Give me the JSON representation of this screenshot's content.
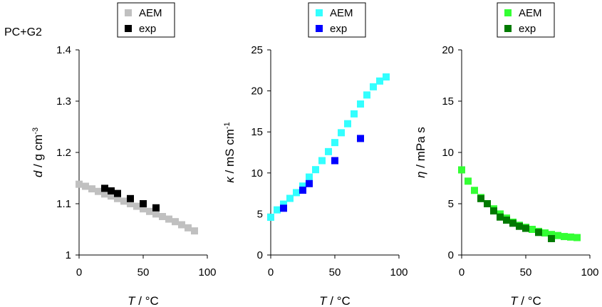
{
  "annotation": "PC+G2",
  "chart_data": [
    {
      "type": "scatter",
      "ylabel_symbol": "d",
      "ylabel_unit": " / g cm",
      "ylabel_sup": "-3",
      "xlabel_symbol": "T",
      "xlabel_unit": " / °C",
      "xlim": [
        0,
        100
      ],
      "ylim": [
        1,
        1.4
      ],
      "xticks": [
        0,
        50,
        100
      ],
      "yticks": [
        1,
        1.1,
        1.2,
        1.3,
        1.4
      ],
      "ytick_labels": [
        "1",
        "1.1",
        "1.2",
        "1.3",
        "1.4"
      ],
      "legend_position": "top",
      "series": [
        {
          "name": "AEM",
          "color": "#c0c0c0",
          "x": [
            0,
            5,
            10,
            15,
            20,
            25,
            30,
            35,
            40,
            45,
            50,
            55,
            60,
            65,
            70,
            75,
            80,
            85,
            90
          ],
          "y": [
            1.138,
            1.134,
            1.129,
            1.124,
            1.119,
            1.115,
            1.11,
            1.105,
            1.1,
            1.095,
            1.09,
            1.085,
            1.08,
            1.075,
            1.07,
            1.065,
            1.059,
            1.053,
            1.047
          ]
        },
        {
          "name": "exp",
          "color": "#000000",
          "x": [
            20,
            25,
            30,
            40,
            50,
            60
          ],
          "y": [
            1.13,
            1.125,
            1.12,
            1.11,
            1.1,
            1.092
          ]
        }
      ]
    },
    {
      "type": "scatter",
      "ylabel_symbol": "κ",
      "ylabel_unit": " / mS cm",
      "ylabel_sup": "-1",
      "xlabel_symbol": "T",
      "xlabel_unit": " / °C",
      "xlim": [
        0,
        100
      ],
      "ylim": [
        0,
        25
      ],
      "xticks": [
        0,
        50,
        100
      ],
      "yticks": [
        0,
        5,
        10,
        15,
        20,
        25
      ],
      "ytick_labels": [
        "0",
        "5",
        "10",
        "15",
        "20",
        "25"
      ],
      "legend_position": "top",
      "series": [
        {
          "name": "AEM",
          "color": "#33ffff",
          "x": [
            0,
            5,
            10,
            15,
            20,
            25,
            30,
            35,
            40,
            45,
            50,
            55,
            60,
            65,
            70,
            75,
            80,
            85,
            90
          ],
          "y": [
            4.6,
            5.5,
            6.2,
            6.9,
            7.6,
            8.4,
            9.5,
            10.4,
            11.5,
            12.6,
            13.7,
            14.9,
            16.0,
            17.2,
            18.4,
            19.5,
            20.5,
            21.2,
            21.7
          ]
        },
        {
          "name": "exp",
          "color": "#0000ff",
          "x": [
            10,
            25,
            30,
            50,
            70
          ],
          "y": [
            5.7,
            7.9,
            8.7,
            11.5,
            14.2
          ]
        }
      ]
    },
    {
      "type": "scatter",
      "ylabel_symbol": "η",
      "ylabel_unit": " / mPa s",
      "ylabel_sup": "",
      "xlabel_symbol": "T",
      "xlabel_unit": " / °C",
      "xlim": [
        0,
        100
      ],
      "ylim": [
        0,
        20
      ],
      "xticks": [
        0,
        50,
        100
      ],
      "yticks": [
        0,
        5,
        10,
        15,
        20
      ],
      "ytick_labels": [
        "0",
        "5",
        "10",
        "15",
        "20"
      ],
      "legend_position": "top",
      "series": [
        {
          "name": "AEM",
          "color": "#33ff33",
          "x": [
            0,
            5,
            10,
            15,
            20,
            25,
            30,
            35,
            40,
            45,
            50,
            55,
            60,
            65,
            70,
            75,
            80,
            85,
            90
          ],
          "y": [
            8.3,
            7.2,
            6.3,
            5.6,
            5.0,
            4.5,
            4.0,
            3.6,
            3.2,
            2.9,
            2.7,
            2.5,
            2.3,
            2.15,
            2.0,
            1.9,
            1.8,
            1.75,
            1.7
          ]
        },
        {
          "name": "exp",
          "color": "#007a00",
          "x": [
            15,
            20,
            25,
            30,
            35,
            40,
            45,
            50,
            60,
            70
          ],
          "y": [
            5.5,
            5.0,
            4.3,
            3.7,
            3.4,
            3.1,
            2.8,
            2.6,
            2.2,
            1.6
          ]
        }
      ]
    }
  ]
}
